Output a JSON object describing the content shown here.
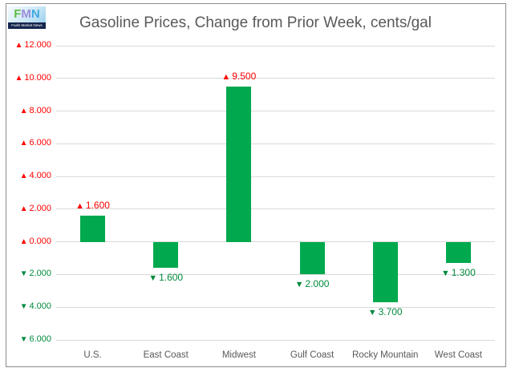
{
  "logo": {
    "letters": [
      "F",
      "M",
      "N"
    ],
    "subtitle": "Fuels Market News"
  },
  "title": "Gasoline Prices, Change from Prior Week, cents/gal",
  "colors": {
    "bar": "#00a94e",
    "positive_text": "#ff0000",
    "negative_text": "#008a3c",
    "grid": "#d9d9d9",
    "axis_text": "#595959",
    "border": "#8c8c8c"
  },
  "markers": {
    "up": "▲",
    "down": "▼"
  },
  "chart_data": {
    "type": "bar",
    "title": "Gasoline Prices, Change from Prior Week, cents/gal",
    "categories": [
      "U.S.",
      "East Coast",
      "Midwest",
      "Gulf Coast",
      "Rocky Mountain",
      "West Coast"
    ],
    "values": [
      1.6,
      -1.6,
      9.5,
      -2.0,
      -3.7,
      -1.3
    ],
    "data_labels": [
      "1.600",
      "1.600",
      "9.500",
      "2.000",
      "3.700",
      "1.300"
    ],
    "yticks": [
      12,
      10,
      8,
      6,
      4,
      2,
      0,
      -2,
      -4,
      -6
    ],
    "ytick_labels": [
      "12.000",
      "10.000",
      "8.000",
      "6.000",
      "4.000",
      "2.000",
      "0.000",
      "2.000",
      "4.000",
      "6.000"
    ],
    "ylim": [
      -6,
      12
    ],
    "xlabel": "",
    "ylabel": "",
    "grid": true,
    "legend": false,
    "bar_color": "#00a94e"
  }
}
